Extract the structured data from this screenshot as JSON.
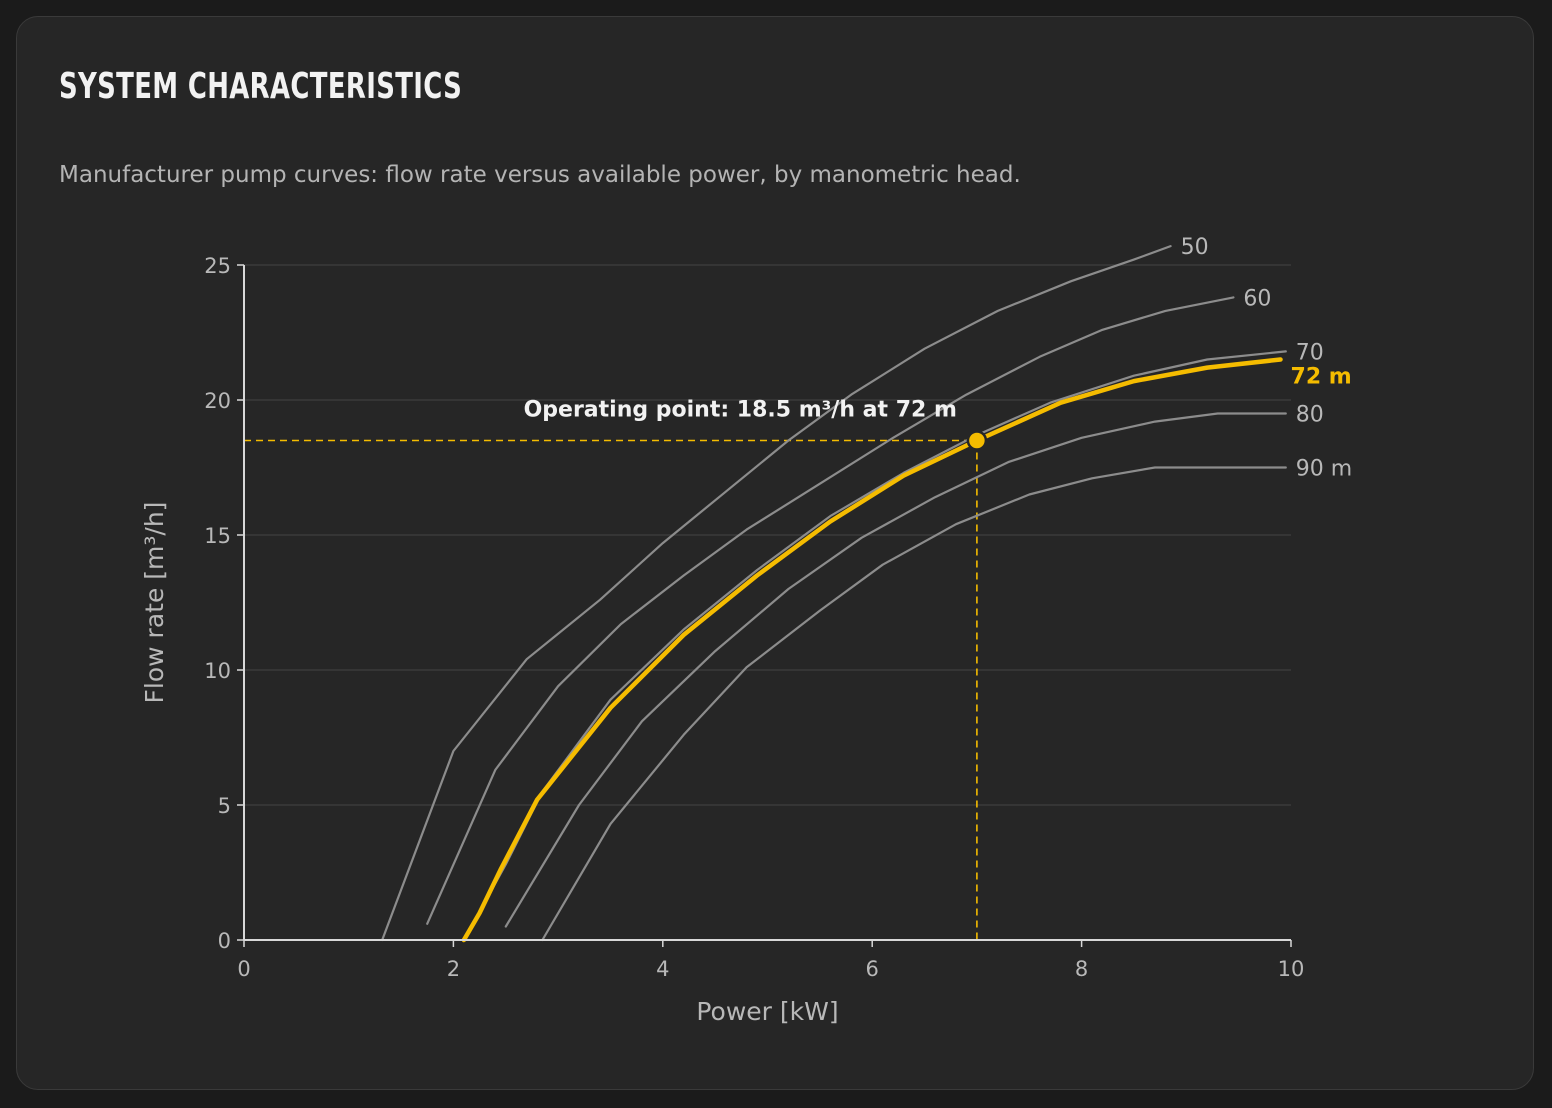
{
  "panel": {
    "title": "SYSTEM CHARACTERISTICS",
    "subtitle": "Manufacturer pump curves: flow rate versus available power, by manometric head."
  },
  "chart_data": {
    "type": "line",
    "xlabel": "Power [kW]",
    "ylabel": "Flow rate [m³/h]",
    "xlim": [
      0,
      10
    ],
    "ylim": [
      0,
      25
    ],
    "xticks": [
      0,
      2,
      4,
      6,
      8,
      10
    ],
    "yticks": [
      0,
      5,
      10,
      15,
      20,
      25
    ],
    "grid": "horizontal",
    "colors": {
      "curve": "#8c8c8c",
      "highlight": "#f5bc00",
      "grid": "#3a3a3a",
      "axis": "#d8d8d8",
      "tick_text": "#b8b8b8"
    },
    "series": [
      {
        "name": "50",
        "x": [
          1.32,
          2.0,
          2.7,
          3.4,
          4.0,
          4.6,
          5.2,
          5.8,
          6.5,
          7.2,
          7.9,
          8.5,
          8.85
        ],
        "values": [
          0,
          7.0,
          10.4,
          12.6,
          14.7,
          16.6,
          18.5,
          20.2,
          21.9,
          23.3,
          24.4,
          25.2,
          25.7
        ]
      },
      {
        "name": "60",
        "x": [
          1.75,
          2.4,
          3.0,
          3.6,
          4.2,
          4.8,
          5.5,
          6.2,
          6.9,
          7.6,
          8.2,
          8.8,
          9.45
        ],
        "values": [
          0.6,
          6.3,
          9.4,
          11.7,
          13.5,
          15.2,
          16.9,
          18.6,
          20.2,
          21.6,
          22.6,
          23.3,
          23.8
        ]
      },
      {
        "name": "70",
        "x": [
          2.1,
          2.5,
          2.85,
          3.5,
          4.2,
          4.9,
          5.6,
          6.3,
          7.0,
          7.7,
          8.5,
          9.2,
          9.95
        ],
        "values": [
          0,
          2.8,
          5.5,
          8.9,
          11.5,
          13.7,
          15.7,
          17.3,
          18.7,
          19.9,
          20.9,
          21.5,
          21.8
        ]
      },
      {
        "name": "72 m",
        "highlight": true,
        "x": [
          2.1,
          2.25,
          2.45,
          2.8,
          3.5,
          4.2,
          4.9,
          5.6,
          6.3,
          7.0,
          7.8,
          8.5,
          9.2,
          9.9
        ],
        "values": [
          0,
          1.0,
          2.6,
          5.2,
          8.6,
          11.3,
          13.5,
          15.5,
          17.2,
          18.5,
          19.9,
          20.7,
          21.2,
          21.5
        ]
      },
      {
        "name": "80",
        "x": [
          2.5,
          3.2,
          3.8,
          4.5,
          5.2,
          5.9,
          6.6,
          7.3,
          8.0,
          8.7,
          9.3,
          9.95
        ],
        "values": [
          0.5,
          5.0,
          8.1,
          10.7,
          13.0,
          14.9,
          16.4,
          17.7,
          18.6,
          19.2,
          19.5,
          19.5
        ]
      },
      {
        "name": "90 m",
        "x": [
          2.85,
          3.5,
          4.2,
          4.8,
          5.5,
          6.1,
          6.8,
          7.5,
          8.1,
          8.7,
          9.3,
          9.95
        ],
        "values": [
          0,
          4.3,
          7.6,
          10.1,
          12.2,
          13.9,
          15.4,
          16.5,
          17.1,
          17.5,
          17.5,
          17.5
        ]
      }
    ],
    "operating_point": {
      "x": 7.0,
      "y": 18.5,
      "label": "Operating point: 18.5 m³/h at 72 m"
    }
  }
}
